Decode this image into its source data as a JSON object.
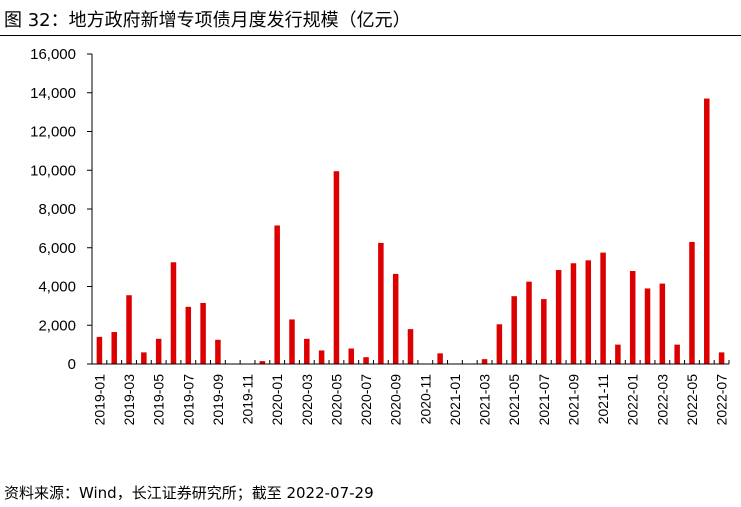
{
  "figure": {
    "title": "图 32：地方政府新增专项债月度发行规模（亿元）",
    "source": "资料来源：Wind，长江证券研究所；截至 2022-07-29"
  },
  "chart_data": {
    "type": "bar",
    "title": "图 32：地方政府新增专项债月度发行规模（亿元）",
    "xlabel": "",
    "ylabel": "",
    "ylim": [
      0,
      16000
    ],
    "yticks": [
      "0",
      "2,000",
      "4,000",
      "6,000",
      "8,000",
      "10,000",
      "12,000",
      "14,000",
      "16,000"
    ],
    "grid": false,
    "color": "#dd0000",
    "categories": [
      "2019-01",
      "2019-02",
      "2019-03",
      "2019-04",
      "2019-05",
      "2019-06",
      "2019-07",
      "2019-08",
      "2019-09",
      "2019-10",
      "2019-11",
      "2019-12",
      "2020-01",
      "2020-02",
      "2020-03",
      "2020-04",
      "2020-05",
      "2020-06",
      "2020-07",
      "2020-08",
      "2020-09",
      "2020-10",
      "2020-11",
      "2020-12",
      "2021-01",
      "2021-02",
      "2021-03",
      "2021-04",
      "2021-05",
      "2021-06",
      "2021-07",
      "2021-08",
      "2021-09",
      "2021-10",
      "2021-11",
      "2021-12",
      "2022-01",
      "2022-02",
      "2022-03",
      "2022-04",
      "2022-05",
      "2022-06",
      "2022-07"
    ],
    "tick_labels": [
      "2019-01",
      "2019-03",
      "2019-05",
      "2019-07",
      "2019-09",
      "2019-11",
      "2020-01",
      "2020-03",
      "2020-05",
      "2020-07",
      "2020-09",
      "2020-11",
      "2021-01",
      "2021-03",
      "2021-05",
      "2021-07",
      "2021-09",
      "2021-11",
      "2022-01",
      "2022-03",
      "2022-05",
      "2022-07"
    ],
    "values": [
      1400,
      1650,
      3550,
      600,
      1300,
      5250,
      2950,
      3150,
      1250,
      0,
      0,
      150,
      7150,
      2300,
      1300,
      700,
      9950,
      800,
      350,
      6250,
      4650,
      1800,
      0,
      550,
      0,
      0,
      250,
      2050,
      3500,
      4250,
      3350,
      4850,
      5200,
      5350,
      5750,
      1000,
      4800,
      3900,
      4150,
      1000,
      6300,
      13700,
      600
    ]
  }
}
